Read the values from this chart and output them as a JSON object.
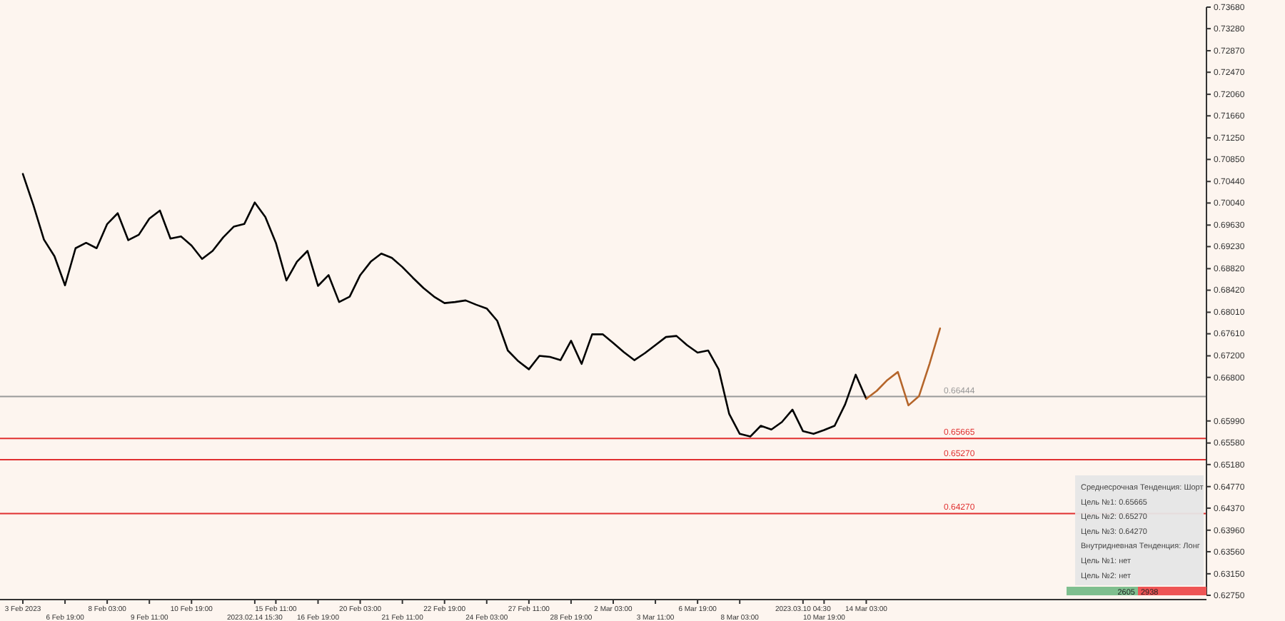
{
  "chart_data": {
    "type": "line",
    "categories": [
      "3 Feb 2023",
      null,
      null,
      null,
      "6 Feb 19:00",
      null,
      null,
      null,
      "8 Feb 03:00",
      null,
      null,
      null,
      "9 Feb 11:00",
      null,
      null,
      null,
      "10 Feb 19:00",
      null,
      null,
      null,
      null,
      null,
      "2023.02.14 15:30",
      null,
      "15 Feb 11:00",
      null,
      null,
      null,
      "16 Feb 19:00",
      null,
      null,
      null,
      "20 Feb 03:00",
      null,
      null,
      null,
      "21 Feb 11:00",
      null,
      null,
      null,
      "22 Feb 19:00",
      null,
      null,
      null,
      "24 Feb 03:00",
      null,
      null,
      null,
      "27 Feb 11:00",
      null,
      null,
      null,
      "28 Feb 19:00",
      null,
      null,
      null,
      "2 Mar 03:00",
      null,
      null,
      null,
      "3 Mar 11:00",
      null,
      null,
      null,
      "6 Mar 19:00",
      null,
      null,
      null,
      "8 Mar 03:00",
      null,
      null,
      null,
      null,
      null,
      "2023.03.10 04:30",
      null,
      "10 Mar 19:00",
      null,
      null,
      null,
      "14 Mar 03:00",
      null,
      null,
      null,
      null,
      null,
      null,
      null,
      null,
      null,
      null,
      null,
      null,
      null,
      null,
      null,
      null,
      null,
      null,
      null,
      null,
      null,
      null,
      null,
      null,
      null,
      null,
      null,
      null,
      null,
      null,
      null,
      null
    ],
    "series": [
      {
        "color": "#000000",
        "values": [
          0.7058,
          0.7,
          0.6936,
          0.6905,
          0.6851,
          0.692,
          0.693,
          0.692,
          0.6965,
          0.6985,
          0.6935,
          0.6945,
          0.6975,
          0.699,
          0.6938,
          0.6942,
          0.6925,
          0.69,
          0.6915,
          0.694,
          0.696,
          0.6965,
          0.7005,
          0.6978,
          0.693,
          0.686,
          0.6895,
          0.6915,
          0.685,
          0.687,
          0.682,
          0.683,
          0.687,
          0.6895,
          0.691,
          0.6902,
          0.6885,
          0.6865,
          0.6846,
          0.683,
          0.6818,
          0.682,
          0.6823,
          0.6815,
          0.6808,
          0.6785,
          0.673,
          0.671,
          0.6695,
          0.672,
          0.6718,
          0.6712,
          0.6748,
          0.6705,
          0.676,
          0.676,
          0.6744,
          0.6727,
          0.6712,
          0.6725,
          0.674,
          0.6755,
          0.6757,
          0.674,
          0.6726,
          0.673,
          0.6695,
          0.6612,
          0.6575,
          0.657,
          0.659,
          0.6583,
          0.6597,
          0.662,
          0.658,
          0.6575,
          0.6582,
          0.659,
          0.663,
          0.6685,
          0.664,
          null,
          null,
          null,
          null,
          null,
          null,
          null,
          null,
          null,
          null,
          null,
          null,
          null,
          null,
          null,
          null,
          null,
          null,
          null,
          null,
          null,
          null,
          null,
          null,
          null,
          null,
          null,
          null,
          null,
          null,
          null,
          null
        ]
      },
      {
        "color": "#b5652a",
        "values": [
          null,
          null,
          null,
          null,
          null,
          null,
          null,
          null,
          null,
          null,
          null,
          null,
          null,
          null,
          null,
          null,
          null,
          null,
          null,
          null,
          null,
          null,
          null,
          null,
          null,
          null,
          null,
          null,
          null,
          null,
          null,
          null,
          null,
          null,
          null,
          null,
          null,
          null,
          null,
          null,
          null,
          null,
          null,
          null,
          null,
          null,
          null,
          null,
          null,
          null,
          null,
          null,
          null,
          null,
          null,
          null,
          null,
          null,
          null,
          null,
          null,
          null,
          null,
          null,
          null,
          null,
          null,
          null,
          null,
          null,
          null,
          null,
          null,
          null,
          null,
          null,
          null,
          null,
          null,
          null,
          0.664,
          0.6655,
          0.6675,
          0.669,
          0.6628,
          0.6645,
          0.6705,
          0.6771,
          null,
          null,
          null,
          null,
          null,
          null,
          null,
          null,
          null,
          null,
          null,
          null,
          null,
          null,
          null,
          null,
          null,
          null,
          null,
          null,
          null,
          null,
          null,
          null,
          null
        ]
      }
    ],
    "ylim": [
      0.6275,
      0.7368
    ],
    "yticks": [
      {
        "value": 0.7368,
        "label": "0.73680"
      },
      {
        "value": 0.7328,
        "label": "0.73280"
      },
      {
        "value": 0.7287,
        "label": "0.72870"
      },
      {
        "value": 0.7247,
        "label": "0.72470"
      },
      {
        "value": 0.7206,
        "label": "0.72060"
      },
      {
        "value": 0.7166,
        "label": "0.71660"
      },
      {
        "value": 0.7125,
        "label": "0.71250"
      },
      {
        "value": 0.7085,
        "label": "0.70850"
      },
      {
        "value": 0.7044,
        "label": "0.70440"
      },
      {
        "value": 0.7004,
        "label": "0.70040"
      },
      {
        "value": 0.6963,
        "label": "0.69630"
      },
      {
        "value": 0.6923,
        "label": "0.69230"
      },
      {
        "value": 0.6882,
        "label": "0.68820"
      },
      {
        "value": 0.6842,
        "label": "0.68420"
      },
      {
        "value": 0.6801,
        "label": "0.68010"
      },
      {
        "value": 0.6761,
        "label": "0.67610"
      },
      {
        "value": 0.672,
        "label": "0.67200"
      },
      {
        "value": 0.668,
        "label": "0.66800"
      },
      {
        "value": 0.6599,
        "label": "0.65990"
      },
      {
        "value": 0.6558,
        "label": "0.65580"
      },
      {
        "value": 0.6518,
        "label": "0.65180"
      },
      {
        "value": 0.6477,
        "label": "0.64770"
      },
      {
        "value": 0.6437,
        "label": "0.64370"
      },
      {
        "value": 0.6396,
        "label": "0.63960"
      },
      {
        "value": 0.6356,
        "label": "0.63560"
      },
      {
        "value": 0.6315,
        "label": "0.63150"
      },
      {
        "value": 0.6275,
        "label": "0.62750"
      }
    ],
    "ref_lines": [
      {
        "axis": "y",
        "value": 0.66444,
        "label": "0.66444",
        "color": "#999999"
      },
      {
        "axis": "y",
        "value": 0.65665,
        "label": "0.65665",
        "color": "#e03030"
      },
      {
        "axis": "y",
        "value": 0.6527,
        "label": "0.65270",
        "color": "#e03030"
      },
      {
        "axis": "y",
        "value": 0.6427,
        "label": "0.64270",
        "color": "#e03030"
      }
    ],
    "annotations": [
      "Среднесрочная Тенденция: Шорт",
      "Цель №1: 0.65665",
      "Цель №2: 0.65270",
      "Цель №3: 0.64270",
      "Внутридневная Тенденция: Лонг",
      "Цель №1: нет",
      "Цель №2: нет",
      "2605",
      "2938"
    ]
  }
}
